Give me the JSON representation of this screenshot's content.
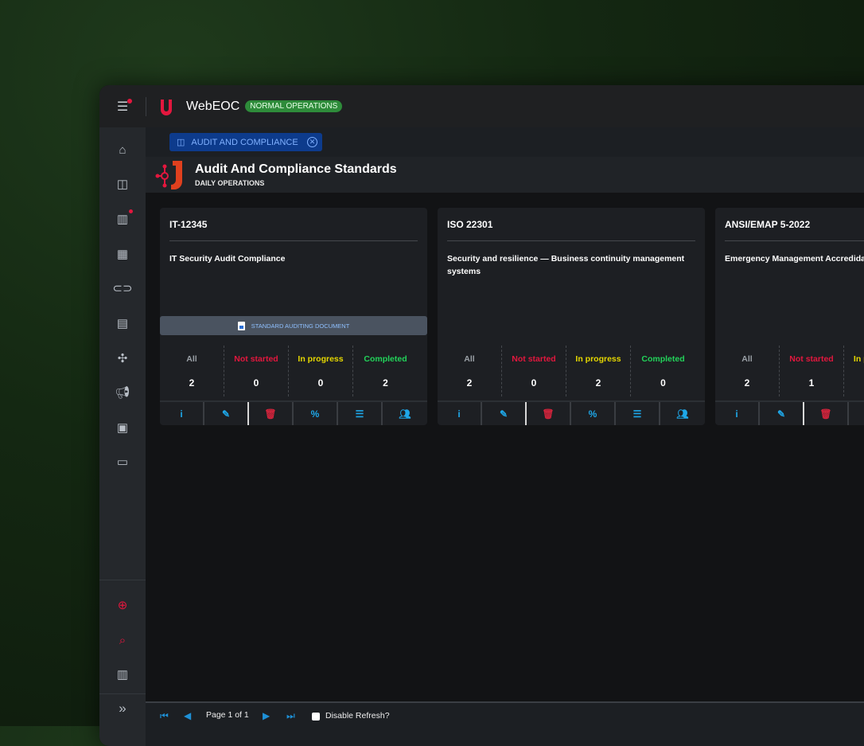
{
  "app": {
    "name": "WebEOC",
    "status_badge": "NORMAL OPERATIONS"
  },
  "tab": {
    "label": "AUDIT AND COMPLIANCE"
  },
  "header": {
    "title": "Audit And Compliance Standards",
    "subtitle": "DAILY OPERATIONS"
  },
  "stat_labels": {
    "all": "All",
    "not_started": "Not started",
    "in_progress": "In progress",
    "completed": "Completed"
  },
  "cards": [
    {
      "title": "IT-12345",
      "description": "IT Security Audit Compliance",
      "document_button": "STANDARD AUDITING DOCUMENT",
      "all": "2",
      "not_started": "0",
      "in_progress": "0",
      "completed": "2"
    },
    {
      "title": "ISO 22301",
      "description": "Security and resilience — Business continuity management systems",
      "all": "2",
      "not_started": "0",
      "in_progress": "2",
      "completed": "0"
    },
    {
      "title": "ANSI/EMAP 5-2022",
      "description": "Emergency Management Accredida",
      "all": "2",
      "not_started": "1"
    }
  ],
  "footer": {
    "page_text": "Page 1 of 1",
    "disable_refresh_label": "Disable Refresh?",
    "disable_refresh_checked": false
  },
  "colors": {
    "accent": "#1ea7e8",
    "danger": "#e3173e",
    "success": "#2e8b3a",
    "not_started": "#e3173e",
    "in_progress": "#e6d800",
    "completed": "#22d35a"
  }
}
